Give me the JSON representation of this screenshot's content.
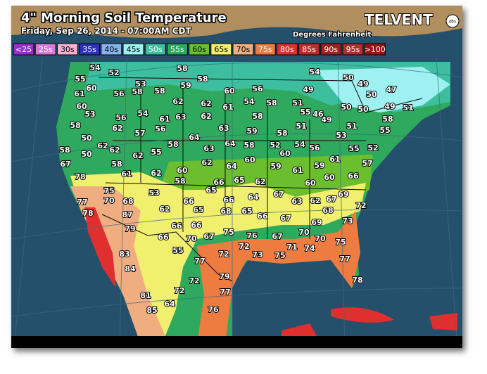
{
  "header": {
    "title": "4\" Morning Soil Temperature",
    "subtitle": "Friday, Sep 26, 2014 - 07:00AM CDT",
    "units": "Degrees Fahrenheit",
    "brand": "TELVENT",
    "brand_badge": "dtn"
  },
  "legend": {
    "items": [
      {
        "label": "<25",
        "color": "#9a2fd0"
      },
      {
        "label": "25s",
        "color": "#d77ad7"
      },
      {
        "label": "30s",
        "color": "#f2b2d2"
      },
      {
        "label": "35s",
        "color": "#2f2fc0"
      },
      {
        "label": "40s",
        "color": "#88b2ee"
      },
      {
        "label": "45s",
        "color": "#9ff0f0"
      },
      {
        "label": "50s",
        "color": "#3dbf9f"
      },
      {
        "label": "55s",
        "color": "#2fa95d"
      },
      {
        "label": "60s",
        "color": "#6bbf2f"
      },
      {
        "label": "65s",
        "color": "#f0ef6e"
      },
      {
        "label": "70s",
        "color": "#f0ae80"
      },
      {
        "label": "75s",
        "color": "#ee7c40"
      },
      {
        "label": "80s",
        "color": "#df2f2f"
      },
      {
        "label": "85s",
        "color": "#c02a2a"
      },
      {
        "label": "90s",
        "color": "#a01e1e"
      },
      {
        "label": "95s",
        "color": "#b02e2e"
      },
      {
        "label": ">100",
        "color": "#9e1010"
      }
    ]
  },
  "readings": [
    54,
    52,
    58,
    53,
    59,
    58,
    55,
    60,
    58,
    56,
    58,
    60,
    56,
    54,
    50,
    49,
    49,
    50,
    47,
    61,
    60,
    53,
    62,
    62,
    61,
    54,
    58,
    51,
    50,
    50,
    49,
    51,
    56,
    54,
    61,
    63,
    62,
    58,
    55,
    46,
    58,
    58,
    62,
    57,
    56,
    63,
    59,
    58,
    51,
    49,
    51,
    55,
    53,
    50,
    64,
    64,
    58,
    52,
    54,
    56,
    55,
    52,
    58,
    50,
    62,
    62,
    62,
    55,
    58,
    63,
    60,
    61,
    67,
    58,
    62,
    64,
    60,
    59,
    61,
    59,
    57,
    78,
    61,
    62,
    60,
    58,
    66,
    65,
    62,
    60,
    60,
    66,
    75,
    53,
    65,
    64,
    67,
    69,
    77,
    70,
    68,
    66,
    66,
    63,
    62,
    67,
    87,
    62,
    65,
    68,
    65,
    66,
    68,
    72,
    78,
    67,
    69,
    73,
    79,
    66,
    66,
    75,
    76,
    66,
    70,
    67,
    67,
    70,
    70,
    75,
    83,
    55,
    72,
    72,
    73,
    75,
    71,
    74,
    84,
    77,
    79,
    77,
    72,
    78,
    81,
    72,
    77,
    85,
    64,
    76
  ]
}
